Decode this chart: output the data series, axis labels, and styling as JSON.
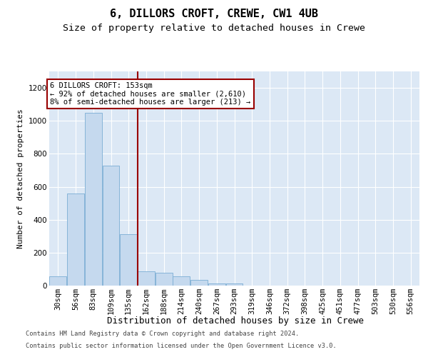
{
  "title1": "6, DILLORS CROFT, CREWE, CW1 4UB",
  "title2": "Size of property relative to detached houses in Crewe",
  "xlabel": "Distribution of detached houses by size in Crewe",
  "ylabel": "Number of detached properties",
  "bar_labels": [
    "30sqm",
    "56sqm",
    "83sqm",
    "109sqm",
    "135sqm",
    "162sqm",
    "188sqm",
    "214sqm",
    "240sqm",
    "267sqm",
    "293sqm",
    "319sqm",
    "346sqm",
    "372sqm",
    "398sqm",
    "425sqm",
    "451sqm",
    "477sqm",
    "503sqm",
    "530sqm",
    "556sqm"
  ],
  "bar_values": [
    55,
    560,
    1050,
    730,
    310,
    85,
    80,
    55,
    35,
    15,
    15,
    0,
    0,
    0,
    0,
    0,
    0,
    0,
    0,
    0,
    0
  ],
  "bar_color": "#c5d9ee",
  "bar_edge_color": "#7aadd4",
  "vline_x": 4.5,
  "vline_color": "#990000",
  "annotation_line1": "6 DILLORS CROFT: 153sqm",
  "annotation_line2": "← 92% of detached houses are smaller (2,610)",
  "annotation_line3": "8% of semi-detached houses are larger (213) →",
  "ann_box_color": "#990000",
  "ylim_max": 1300,
  "yticks": [
    0,
    200,
    400,
    600,
    800,
    1000,
    1200
  ],
  "background_color": "#dce8f5",
  "grid_color": "#ffffff",
  "footer1": "Contains HM Land Registry data © Crown copyright and database right 2024.",
  "footer2": "Contains public sector information licensed under the Open Government Licence v3.0.",
  "title1_fontsize": 11,
  "title2_fontsize": 9.5,
  "xlabel_fontsize": 9,
  "ylabel_fontsize": 8,
  "tick_fontsize": 7.5,
  "ann_fontsize": 7.5,
  "footer_fontsize": 6.2
}
